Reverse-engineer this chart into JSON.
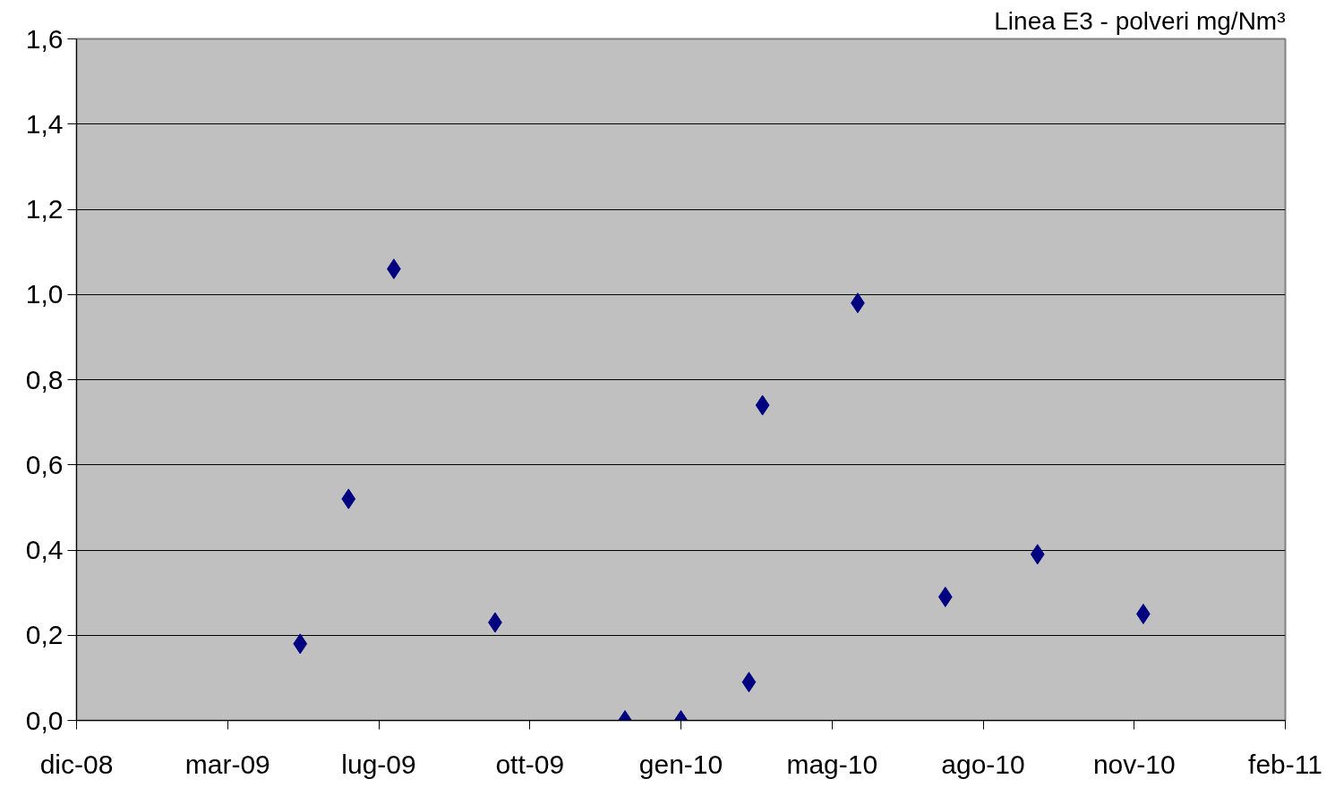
{
  "chart_data": {
    "type": "scatter",
    "title": "Linea E3 - polveri mg/Nm³",
    "x": [
      "2009-05-17",
      "2009-06-18",
      "2009-07-18",
      "2009-09-23",
      "2009-12-18",
      "2010-01-24",
      "2010-03-10",
      "2010-03-19",
      "2010-05-21",
      "2010-07-18",
      "2010-09-17",
      "2010-11-26"
    ],
    "series": [
      {
        "color": "#000080",
        "values": [
          0.18,
          0.52,
          1.06,
          0.23,
          0.0,
          0.0,
          0.09,
          0.74,
          0.98,
          0.29,
          0.39,
          0.25
        ]
      }
    ],
    "marker": "diamond",
    "grid": "y",
    "xlim": [
      "2008-12-20",
      "2011-02-28"
    ],
    "xticks": [
      {
        "value": "2008-12-20",
        "label": "dic-08"
      },
      {
        "value": "2009-03-30",
        "label": "mar-09"
      },
      {
        "value": "2009-07-08",
        "label": "lug-09"
      },
      {
        "value": "2009-10-16",
        "label": "ott-09"
      },
      {
        "value": "2010-01-24",
        "label": "gen-10"
      },
      {
        "value": "2010-05-04",
        "label": "mag-10"
      },
      {
        "value": "2010-08-12",
        "label": "ago-10"
      },
      {
        "value": "2010-11-20",
        "label": "nov-10"
      },
      {
        "value": "2011-02-28",
        "label": "feb-11"
      }
    ],
    "ylim": [
      0,
      1.6
    ],
    "yticks": [
      {
        "value": 0,
        "label": "0,0"
      },
      {
        "value": 0.2,
        "label": "0,2"
      },
      {
        "value": 0.4,
        "label": "0,4"
      },
      {
        "value": 0.6,
        "label": "0,6"
      },
      {
        "value": 0.8,
        "label": "0,8"
      },
      {
        "value": 1.0,
        "label": "1,0"
      },
      {
        "value": 1.2,
        "label": "1,2"
      },
      {
        "value": 1.4,
        "label": "1,4"
      },
      {
        "value": 1.6,
        "label": "1,6"
      }
    ]
  }
}
